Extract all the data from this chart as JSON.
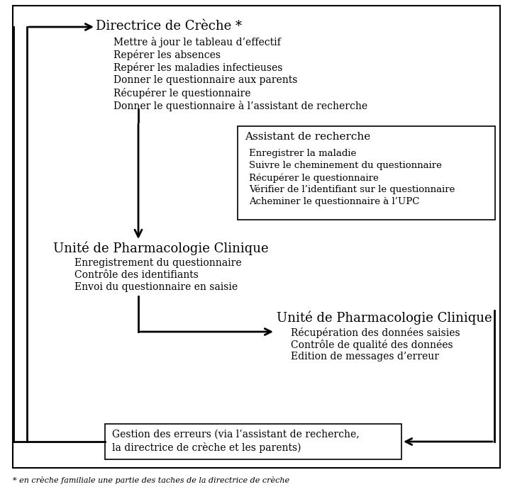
{
  "bg_color": "#ffffff",
  "border_color": "#000000",
  "text_color": "#000000",
  "block1_title": "Directrice de Crèche *",
  "block1_items": [
    "Mettre à jour le tableau d’effectif",
    "Repérer les absences",
    "Repérer les maladies infectieuses",
    "Donner le questionnaire aux parents",
    "Récupérer le questionnaire",
    "Donner le questionnaire à l’assistant de recherche"
  ],
  "block2_title": "Assistant de recherche",
  "block2_items": [
    "Enregistrer la maladie",
    "Suivre le cheminement du questionnaire",
    "Récupérer le questionnaire",
    "Vérifier de l’identifiant sur le questionnaire",
    "Acheminer le questionnaire à l’UPC"
  ],
  "block3_title": "Unité de Pharmacologie Clinique",
  "block3_items": [
    "Enregistrement du questionnaire",
    "Contrôle des identifiants",
    "Envoi du questionnaire en saisie"
  ],
  "block4_title": "Unité de Pharmacologie Clinique",
  "block4_items": [
    "Récupération des données saisies",
    "Contrôle de qualité des données",
    "Edition de messages d’erreur"
  ],
  "block5_line1": "Gestion des erreurs (via l’assistant de recherche,",
  "block5_line2": "la directrice de crèche et les parents)",
  "footnote": "* en crèche familiale une partie des taches de la directrice de crèche"
}
